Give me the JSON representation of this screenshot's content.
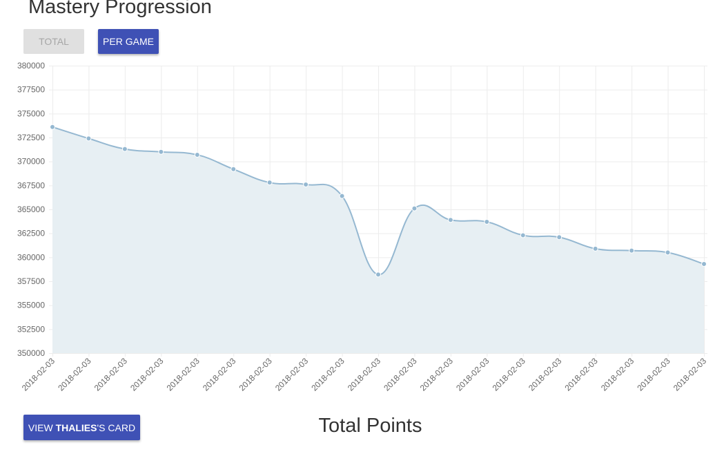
{
  "header": {
    "title": "Mastery Progression"
  },
  "toggle": {
    "total_label": "Total",
    "per_game_label": "Per game"
  },
  "card_button": {
    "prefix": "View ",
    "name": "Thalies",
    "suffix": "'s card"
  },
  "section": {
    "title": "Total Points"
  },
  "colors": {
    "line": "#95b8d1",
    "fill": "#e7eff3",
    "accent": "#3f51b5",
    "grid": "#ececec"
  },
  "chart_data": {
    "type": "area",
    "x": [
      "2018-02-03",
      "2018-02-03",
      "2018-02-03",
      "2018-02-03",
      "2018-02-03",
      "2018-02-03",
      "2018-02-03",
      "2018-02-03",
      "2018-02-03",
      "2018-02-03",
      "2018-02-03",
      "2018-02-03",
      "2018-02-03",
      "2018-02-03",
      "2018-02-03",
      "2018-02-03",
      "2018-02-03",
      "2018-02-03",
      "2018-02-03"
    ],
    "values": [
      373600,
      372400,
      371300,
      371000,
      370700,
      369200,
      367800,
      367600,
      366400,
      358200,
      365100,
      363900,
      363700,
      362300,
      362100,
      360900,
      360700,
      360500,
      359300
    ],
    "yticks": [
      "380000",
      "377500",
      "375000",
      "372500",
      "370000",
      "367500",
      "365000",
      "362500",
      "360000",
      "357500",
      "355000",
      "352500",
      "350000"
    ],
    "ylim": [
      350000,
      380000
    ],
    "title": "",
    "xlabel": "",
    "ylabel": "",
    "grid": true,
    "legend": "none"
  }
}
